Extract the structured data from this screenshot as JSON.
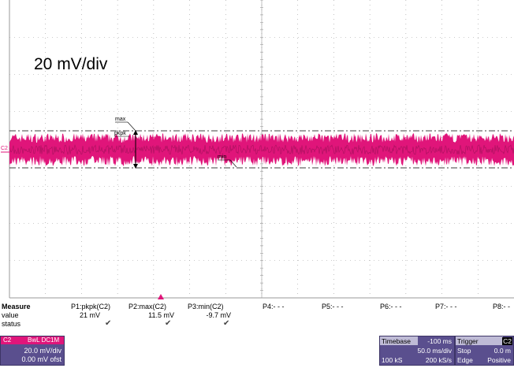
{
  "scope": {
    "annotation": "20 mV/div",
    "channel_label": "C2",
    "markers": {
      "max": "max",
      "pkpk": "pkpk",
      "min": "min"
    },
    "colors": {
      "trace": "#e0157a",
      "grid": "#9a9a9a",
      "marker_lines": "#000000"
    },
    "grid": {
      "divisions_x": 14,
      "divisions_y": 8
    }
  },
  "measure": {
    "header": "Measure",
    "row_labels": [
      "value",
      "status"
    ],
    "params": [
      {
        "label": "P1:pkpk(C2)",
        "value": "21 mV",
        "status": "check-icon"
      },
      {
        "label": "P2:max(C2)",
        "value": "11.5 mV",
        "status": "check-icon"
      },
      {
        "label": "P3:min(C2)",
        "value": "-9.7 mV",
        "status": "check-icon"
      },
      {
        "label": "P4:- - -",
        "value": "",
        "status": ""
      },
      {
        "label": "P5:- - -",
        "value": "",
        "status": ""
      },
      {
        "label": "P6:- - -",
        "value": "",
        "status": ""
      },
      {
        "label": "P7:- - -",
        "value": "",
        "status": ""
      },
      {
        "label": "P8:- -",
        "value": "",
        "status": ""
      }
    ]
  },
  "channel": {
    "name": "C2",
    "tag": "BwL DC1M",
    "vdiv": "20.0 mV/div",
    "offset": "0.00 mV ofst"
  },
  "timebase": {
    "title": "Timebase",
    "delay": "-100 ms",
    "tdiv": "50.0 ms/div",
    "samples": "100 kS",
    "rate": "200 kS/s"
  },
  "trigger": {
    "title": "Trigger",
    "source": "C2",
    "mode": "Stop",
    "level": "0.0 m",
    "type": "Edge",
    "slope": "Positive"
  }
}
